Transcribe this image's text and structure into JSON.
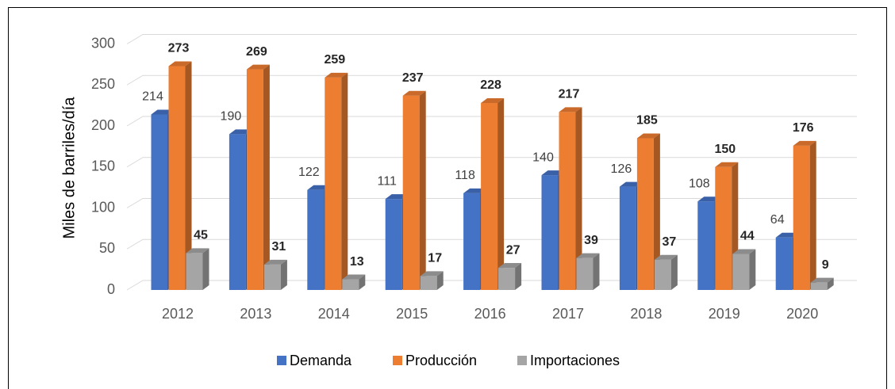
{
  "chart_data": {
    "type": "bar3d",
    "y_label": "Miles de barriles/día",
    "categories": [
      "2012",
      "2013",
      "2014",
      "2015",
      "2016",
      "2017",
      "2018",
      "2019",
      "2020"
    ],
    "series": [
      {
        "name": "Demanda",
        "color": "#4472c4",
        "values": [
          214,
          190,
          122,
          111,
          118,
          140,
          126,
          108,
          64
        ]
      },
      {
        "name": "Producción",
        "color": "#ed7d31",
        "values": [
          273,
          269,
          259,
          237,
          228,
          217,
          185,
          150,
          176
        ]
      },
      {
        "name": "Importaciones",
        "color": "#a5a5a5",
        "values": [
          45,
          31,
          13,
          17,
          27,
          39,
          37,
          44,
          9
        ]
      }
    ],
    "ylim": [
      0,
      300
    ],
    "yticks": [
      0,
      50,
      100,
      150,
      200,
      250,
      300
    ],
    "grid": true,
    "legend": "bottom"
  }
}
